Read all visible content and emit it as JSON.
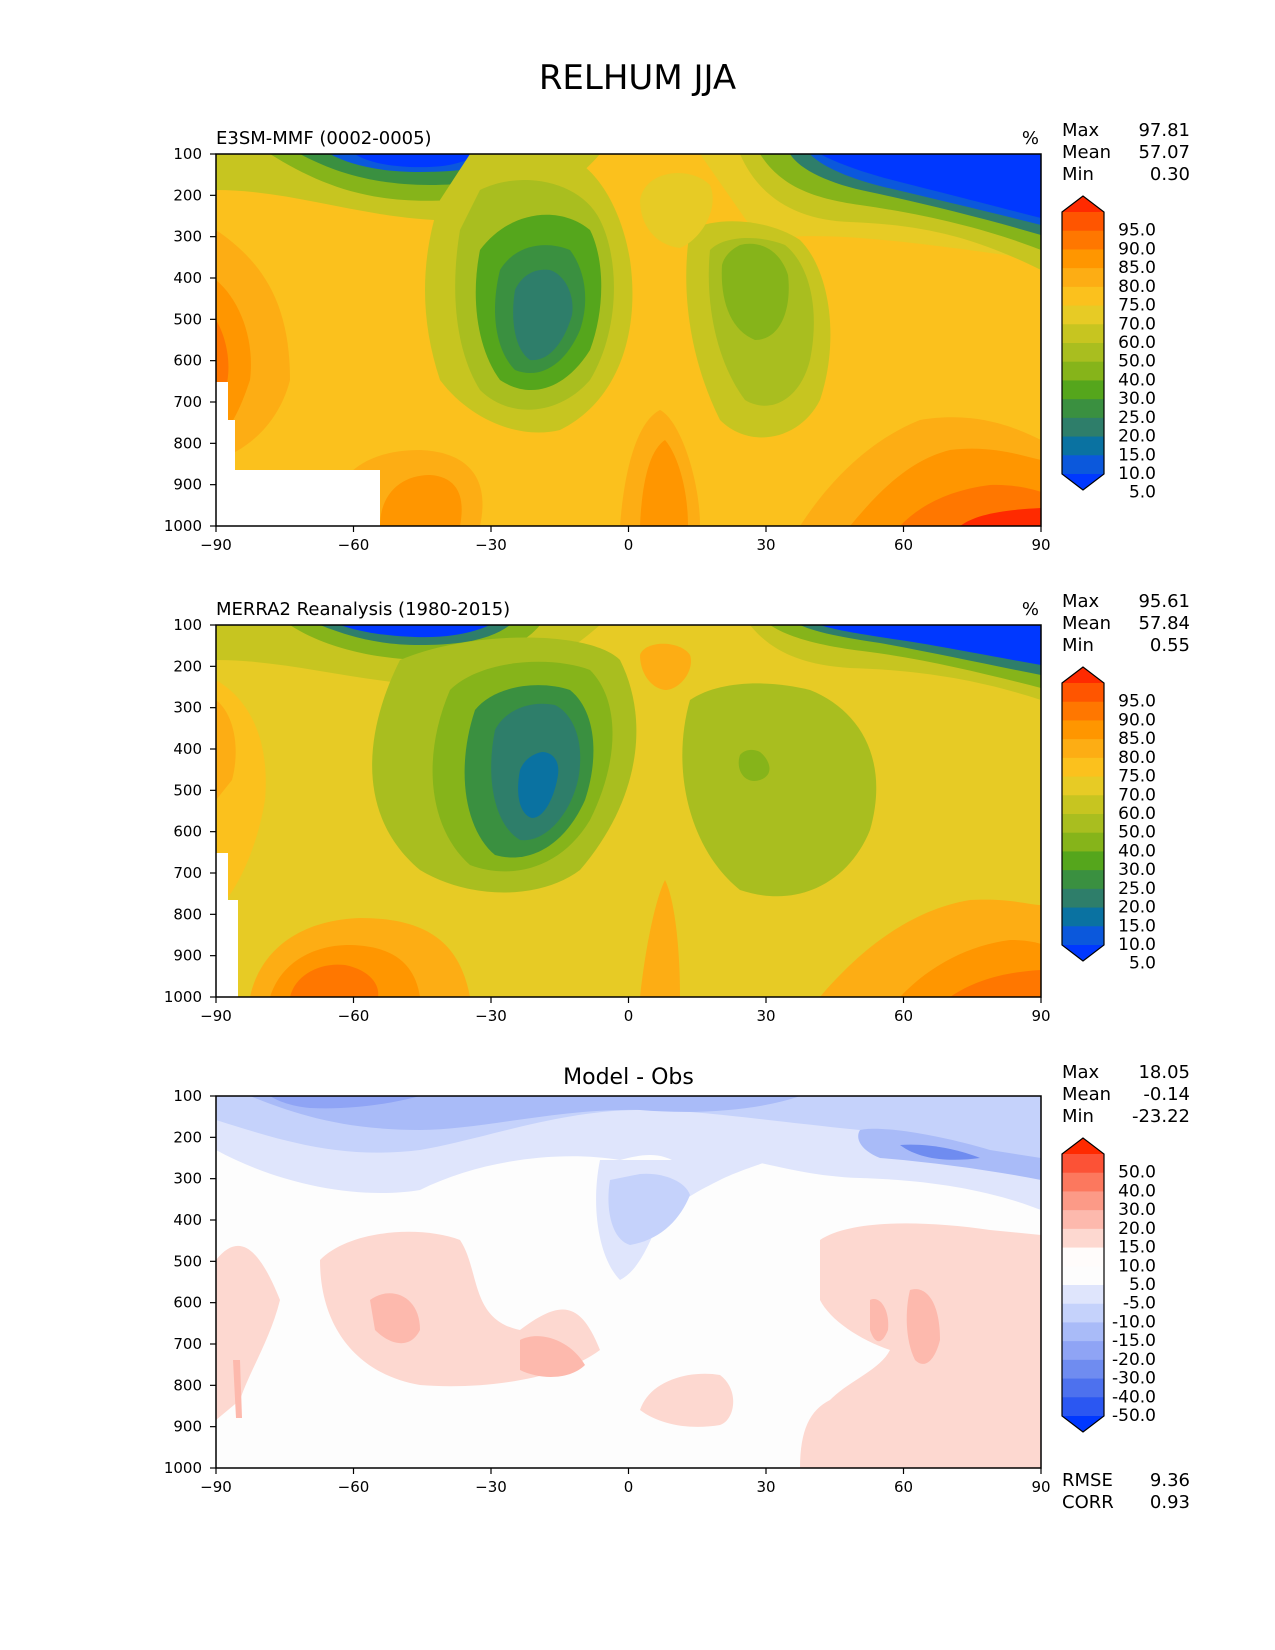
{
  "figure": {
    "suptitle": "RELHUM JJA",
    "colors": {
      "axis": "#000000",
      "text": "#000000",
      "background": "#ffffff"
    }
  },
  "chart_data": [
    {
      "type": "heatmap",
      "title": "E3SM-MMF (0002-0005)",
      "units": "%",
      "xlabel": "",
      "ylabel": "",
      "x_ticks": [
        "−90",
        "−60",
        "−30",
        "0",
        "30",
        "60",
        "90"
      ],
      "y_ticks": [
        "100",
        "200",
        "300",
        "400",
        "500",
        "600",
        "700",
        "800",
        "900",
        "1000"
      ],
      "x_range": [
        -90,
        90
      ],
      "y_range": [
        100,
        1000
      ],
      "y_inverted": true,
      "stats": [
        {
          "label": "Max",
          "value": "97.81"
        },
        {
          "label": "Mean",
          "value": "57.07"
        },
        {
          "label": "Min",
          "value": "0.30"
        }
      ],
      "colorbar": {
        "levels": [
          "95.0",
          "90.0",
          "85.0",
          "80.0",
          "75.0",
          "70.0",
          "60.0",
          "50.0",
          "40.0",
          "30.0",
          "25.0",
          "20.0",
          "15.0",
          "10.0",
          "5.0"
        ],
        "colors": [
          "#ff2a00",
          "#ff5500",
          "#ff7700",
          "#ff9600",
          "#fdad14",
          "#fbc11d",
          "#e7cb25",
          "#c7c520",
          "#a9be1f",
          "#86b41a",
          "#55a61c",
          "#3a9040",
          "#2e7e6a",
          "#0a72a1",
          "#0b58dc",
          "#0038ff"
        ]
      },
      "field_notes": "zonal-mean relative humidity: dry subtropical minima (~15-25%) near 20S and a weaker one near 25N at 400-500 hPa; near-zero values in the upper troposphere of both polar regions; moist (80-95%) boundary layer in the northern high latitudes; blank region over Antarctic topography"
    },
    {
      "type": "heatmap",
      "title": "MERRA2 Reanalysis (1980-2015)",
      "units": "%",
      "xlabel": "",
      "ylabel": "",
      "x_ticks": [
        "−90",
        "−60",
        "−30",
        "0",
        "30",
        "60",
        "90"
      ],
      "y_ticks": [
        "100",
        "200",
        "300",
        "400",
        "500",
        "600",
        "700",
        "800",
        "900",
        "1000"
      ],
      "x_range": [
        -90,
        90
      ],
      "y_range": [
        100,
        1000
      ],
      "y_inverted": true,
      "stats": [
        {
          "label": "Max",
          "value": "95.61"
        },
        {
          "label": "Mean",
          "value": "57.84"
        },
        {
          "label": "Min",
          "value": "0.55"
        }
      ],
      "colorbar": {
        "levels": [
          "95.0",
          "90.0",
          "85.0",
          "80.0",
          "75.0",
          "70.0",
          "60.0",
          "50.0",
          "40.0",
          "30.0",
          "25.0",
          "20.0",
          "15.0",
          "10.0",
          "5.0"
        ],
        "colors": [
          "#ff2a00",
          "#ff5500",
          "#ff7700",
          "#ff9600",
          "#fdad14",
          "#fbc11d",
          "#e7cb25",
          "#c7c520",
          "#a9be1f",
          "#86b41a",
          "#55a61c",
          "#3a9040",
          "#2e7e6a",
          "#0a72a1",
          "#0b58dc",
          "#0038ff"
        ]
      },
      "field_notes": "reanalysis relative humidity with similar structure: southern subtropical minimum (~10-15%) near 20S, broad 40-50% region in northern subtropics, moist high-latitude boundary layers"
    },
    {
      "type": "heatmap",
      "title": "Model - Obs",
      "units": "",
      "xlabel": "",
      "ylabel": "",
      "x_ticks": [
        "−90",
        "−60",
        "−30",
        "0",
        "30",
        "60",
        "90"
      ],
      "y_ticks": [
        "100",
        "200",
        "300",
        "400",
        "500",
        "600",
        "700",
        "800",
        "900",
        "1000"
      ],
      "x_range": [
        -90,
        90
      ],
      "y_range": [
        100,
        1000
      ],
      "y_inverted": true,
      "stats": [
        {
          "label": "Max",
          "value": "18.05"
        },
        {
          "label": "Mean",
          "value": "-0.14"
        },
        {
          "label": "Min",
          "value": "-23.22"
        }
      ],
      "bottom_stats": [
        {
          "label": "RMSE",
          "value": "9.36"
        },
        {
          "label": "CORR",
          "value": "0.93"
        }
      ],
      "colorbar": {
        "levels": [
          "50.0",
          "40.0",
          "30.0",
          "20.0",
          "15.0",
          "10.0",
          "5.0",
          "-5.0",
          "-10.0",
          "-15.0",
          "-20.0",
          "-30.0",
          "-40.0",
          "-50.0"
        ],
        "colors": [
          "#ff2a00",
          "#fc5236",
          "#fc785e",
          "#fc9a87",
          "#fdb9ad",
          "#fdd8d0",
          "#fffcfb",
          "#fdfdfd",
          "#dfe5fc",
          "#c5d2fb",
          "#a9bbf8",
          "#8fa4f5",
          "#6f8cf0",
          "#4d71ee",
          "#2b57f2",
          "#0038ff"
        ]
      },
      "field_notes": "difference field: negative (model drier) values of -10 to -20 in the upper troposphere 100-300 hPa and over the equator 300-500 hPa; positive +5 to +15 in the mid/lower troposphere of both hemispheres"
    }
  ]
}
